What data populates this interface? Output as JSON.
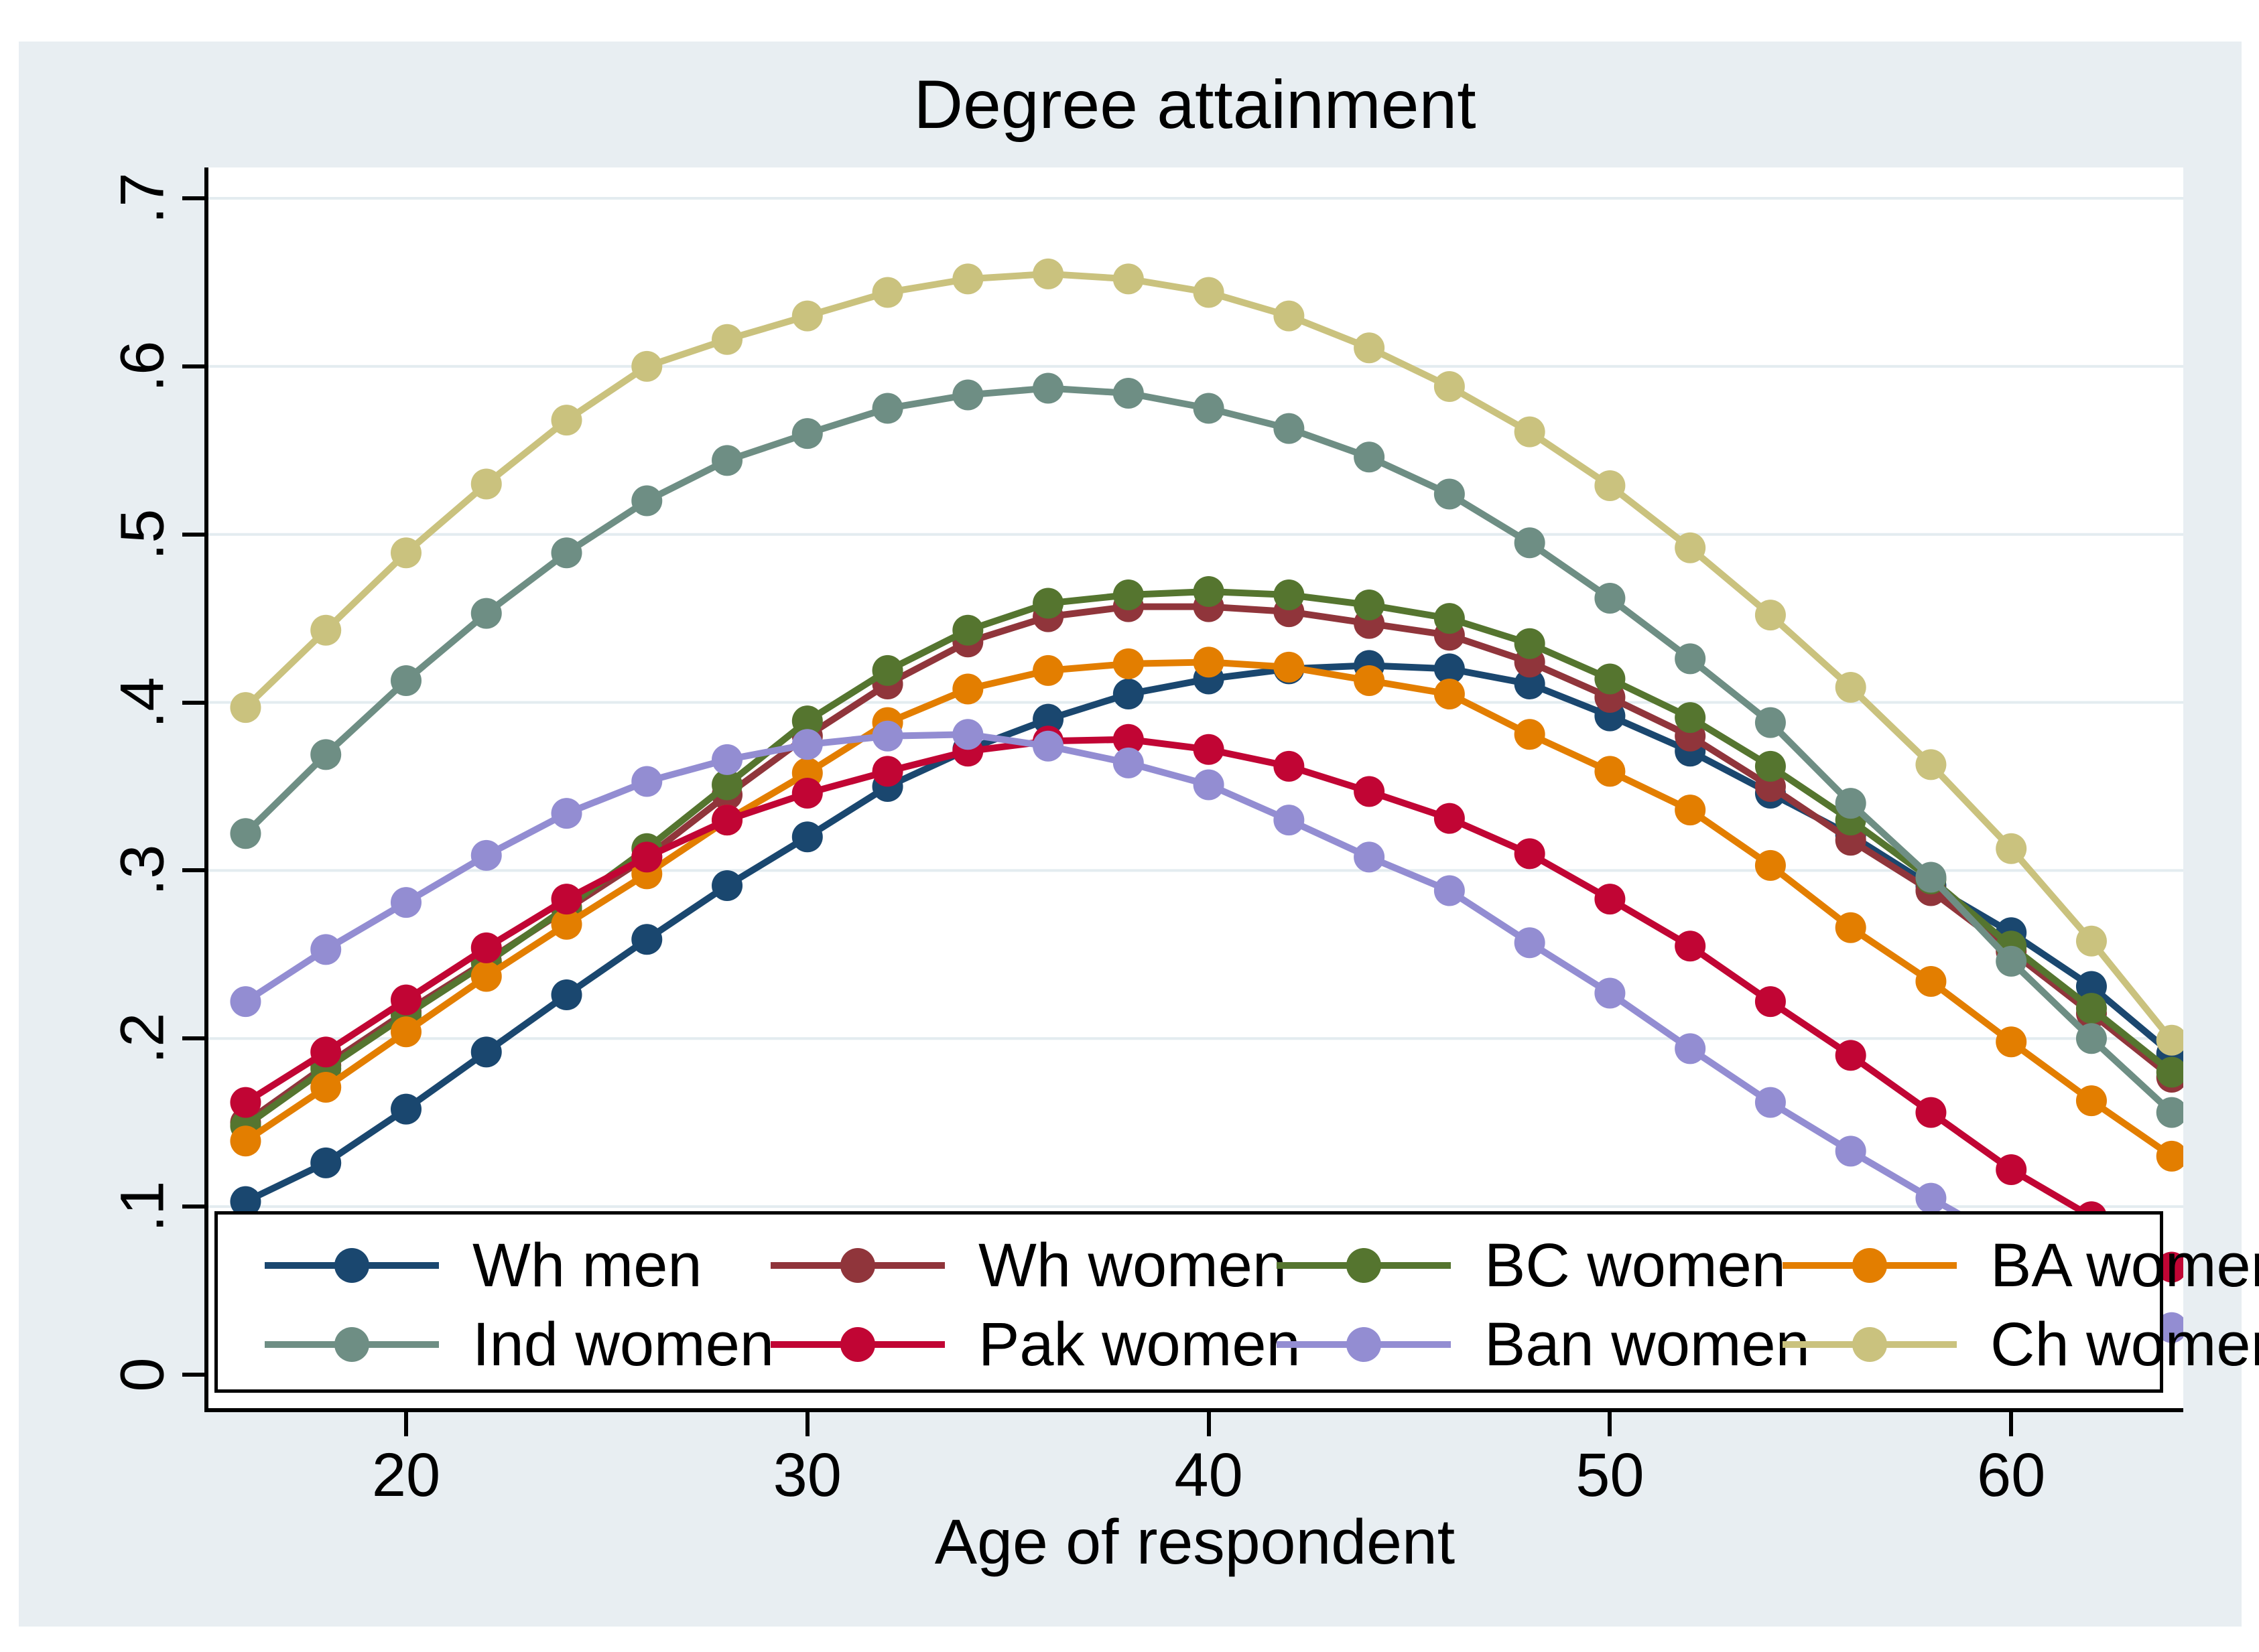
{
  "title": "Degree attainment",
  "x_axis_label": "Age of respondent",
  "background_color": "#e8eef2",
  "plot_background": "#ffffff",
  "gridline_color": "#e3ecf0",
  "axis_color": "#000000",
  "chart_data": {
    "type": "line",
    "title": "Degree attainment",
    "xlabel": "Age of respondent",
    "ylabel": "",
    "grid": "horizontal",
    "legend_position": "bottom-inside",
    "marker": "circle",
    "xlim": [
      15.0,
      64.3
    ],
    "ylim": [
      0,
      0.7
    ],
    "x_ticks": [
      20,
      30,
      40,
      50,
      60
    ],
    "y_ticks": {
      "labels": [
        "0",
        ".1",
        ".2",
        ".3",
        ".4",
        ".5",
        ".6",
        ".7"
      ],
      "values": [
        0,
        0.1,
        0.2,
        0.3,
        0.4,
        0.5,
        0.6,
        0.7
      ]
    },
    "x": [
      16,
      18,
      20,
      22,
      24,
      26,
      28,
      30,
      32,
      34,
      36,
      38,
      40,
      42,
      44,
      46,
      48,
      50,
      52,
      54,
      56,
      58,
      60,
      62,
      64
    ],
    "series": [
      {
        "name": "Wh men",
        "color": "#1a476f",
        "values": [
          0.103,
          0.126,
          0.158,
          0.192,
          0.226,
          0.259,
          0.291,
          0.32,
          0.35,
          0.372,
          0.39,
          0.405,
          0.414,
          0.42,
          0.422,
          0.42,
          0.411,
          0.392,
          0.371,
          0.346,
          0.321,
          0.291,
          0.263,
          0.231,
          0.191
        ]
      },
      {
        "name": "Wh women",
        "color": "#90353b",
        "values": [
          0.15,
          0.184,
          0.216,
          0.246,
          0.277,
          0.308,
          0.345,
          0.38,
          0.411,
          0.436,
          0.451,
          0.457,
          0.457,
          0.454,
          0.447,
          0.44,
          0.424,
          0.403,
          0.38,
          0.35,
          0.318,
          0.288,
          0.252,
          0.215,
          0.177
        ]
      },
      {
        "name": "BC women",
        "color": "#55752f",
        "values": [
          0.148,
          0.182,
          0.214,
          0.245,
          0.278,
          0.313,
          0.351,
          0.389,
          0.419,
          0.443,
          0.459,
          0.464,
          0.466,
          0.464,
          0.458,
          0.45,
          0.435,
          0.414,
          0.391,
          0.362,
          0.33,
          0.295,
          0.255,
          0.218,
          0.18
        ]
      },
      {
        "name": "BA women",
        "color": "#e37e00",
        "values": [
          0.139,
          0.171,
          0.204,
          0.237,
          0.268,
          0.298,
          0.33,
          0.358,
          0.388,
          0.408,
          0.419,
          0.423,
          0.424,
          0.421,
          0.413,
          0.405,
          0.381,
          0.359,
          0.336,
          0.303,
          0.266,
          0.234,
          0.198,
          0.163,
          0.13
        ]
      },
      {
        "name": "Ind women",
        "color": "#6e8e84",
        "values": [
          0.322,
          0.369,
          0.413,
          0.453,
          0.489,
          0.52,
          0.544,
          0.56,
          0.575,
          0.583,
          0.587,
          0.584,
          0.575,
          0.563,
          0.546,
          0.524,
          0.495,
          0.462,
          0.426,
          0.388,
          0.34,
          0.296,
          0.246,
          0.2,
          0.156
        ]
      },
      {
        "name": "Pak women",
        "color": "#c10534",
        "values": [
          0.162,
          0.192,
          0.223,
          0.254,
          0.283,
          0.308,
          0.33,
          0.346,
          0.359,
          0.371,
          0.377,
          0.378,
          0.372,
          0.362,
          0.347,
          0.331,
          0.31,
          0.283,
          0.255,
          0.222,
          0.19,
          0.156,
          0.122,
          0.094,
          0.064
        ]
      },
      {
        "name": "Ban women",
        "color": "#938dd2",
        "values": [
          0.222,
          0.253,
          0.281,
          0.309,
          0.334,
          0.353,
          0.366,
          0.375,
          0.38,
          0.381,
          0.374,
          0.364,
          0.351,
          0.33,
          0.308,
          0.288,
          0.257,
          0.227,
          0.194,
          0.162,
          0.133,
          0.105,
          0.078,
          0.052,
          0.028
        ]
      },
      {
        "name": "Ch women",
        "color": "#cac27e",
        "values": [
          0.397,
          0.443,
          0.489,
          0.53,
          0.568,
          0.6,
          0.616,
          0.63,
          0.644,
          0.652,
          0.655,
          0.652,
          0.644,
          0.63,
          0.611,
          0.588,
          0.561,
          0.529,
          0.492,
          0.452,
          0.409,
          0.363,
          0.313,
          0.258,
          0.199
        ]
      }
    ]
  },
  "legend": {
    "columns": 4,
    "rows": 2
  }
}
